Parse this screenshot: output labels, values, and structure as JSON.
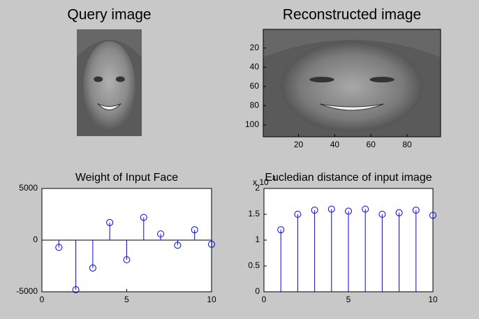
{
  "chart_data": [
    {
      "type": "image",
      "title": "Query image"
    },
    {
      "type": "image",
      "title": "Reconstructed image",
      "xlim": [
        0.5,
        98.5
      ],
      "xticks": [
        20,
        40,
        60,
        80
      ],
      "ylim": [
        0.5,
        112.5
      ],
      "yticks": [
        20,
        40,
        60,
        80,
        100
      ]
    },
    {
      "type": "stem",
      "title": "Weight of Input Face",
      "color": "#0000ff",
      "x": [
        1,
        2,
        3,
        4,
        5,
        6,
        7,
        8,
        9,
        10
      ],
      "values": [
        -700,
        -4800,
        -2700,
        1700,
        -1900,
        2200,
        600,
        -500,
        1000,
        -400
      ],
      "xlim": [
        0,
        10
      ],
      "xticks": [
        0,
        5,
        10
      ],
      "ylim": [
        -5000,
        5000
      ],
      "yticks": [
        -5000,
        0,
        5000
      ]
    },
    {
      "type": "stem",
      "title": "Eucledian distance of input image",
      "color": "#0000ff",
      "y_multiplier": "x 10",
      "y_exponent": 4,
      "x": [
        1,
        2,
        3,
        4,
        5,
        6,
        7,
        8,
        9,
        10
      ],
      "values": [
        1.2,
        1.5,
        1.58,
        1.6,
        1.56,
        1.6,
        1.5,
        1.53,
        1.58,
        1.48
      ],
      "xlim": [
        0,
        10
      ],
      "xticks": [
        0,
        5,
        10
      ],
      "ylim": [
        0,
        2
      ],
      "yticks": [
        0,
        0.5,
        1,
        1.5,
        2
      ]
    }
  ]
}
